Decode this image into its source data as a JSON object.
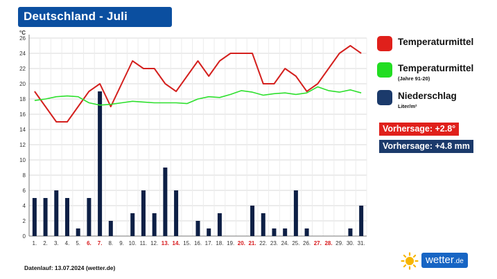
{
  "header": {
    "title": "Deutschland - Juli"
  },
  "legend": [
    {
      "label": "Temperaturmittel",
      "sub": "",
      "color": "#e0201b"
    },
    {
      "label": "Temperaturmittel",
      "sub": "(Jahre 91-20)",
      "color": "#22dd22"
    },
    {
      "label": "Niederschlag",
      "sub": "Liter/m²",
      "color": "#1b3a6b"
    }
  ],
  "forecasts": [
    {
      "text": "Vorhersage: +2.8°",
      "color": "#e0201b"
    },
    {
      "text": "Vorhersage: +4.8 mm",
      "color": "#1b3a6b"
    }
  ],
  "footer": {
    "note": "Datenlauf: 13.07.2024 (wetter.de)"
  },
  "brand": {
    "name": "wetter",
    "suffix": ".de"
  },
  "chart_data": {
    "type": "bar",
    "yunit": "°C",
    "ylim": [
      0,
      26
    ],
    "yticks": [
      0,
      2,
      4,
      6,
      8,
      10,
      12,
      14,
      16,
      18,
      20,
      22,
      24,
      26
    ],
    "grid": true,
    "categories": [
      "1.",
      "2.",
      "3.",
      "4.",
      "5.",
      "6.",
      "7.",
      "8.",
      "9.",
      "10.",
      "11.",
      "12.",
      "13.",
      "14.",
      "15.",
      "16.",
      "17.",
      "18.",
      "19.",
      "20.",
      "21.",
      "22.",
      "23.",
      "24.",
      "25.",
      "26.",
      "27.",
      "28.",
      "29.",
      "30.",
      "31."
    ],
    "weekend_days": [
      6,
      7,
      13,
      14,
      20,
      21,
      27,
      28
    ],
    "weekend_color": "#d7191c",
    "series": [
      {
        "name": "Niederschlag",
        "kind": "bar",
        "color": "#0d1f45",
        "values": [
          5,
          5,
          6,
          5,
          1,
          5,
          19,
          2,
          0,
          3,
          6,
          3,
          9,
          6,
          0,
          2,
          1,
          3,
          0,
          0,
          4,
          3,
          1,
          1,
          6,
          1,
          0,
          0,
          0,
          1,
          4
        ]
      },
      {
        "name": "Temperaturmittel",
        "kind": "line",
        "color": "#d4201e",
        "values": [
          19,
          17,
          15,
          15,
          17,
          19,
          20,
          17,
          20,
          23,
          22,
          22,
          20,
          19,
          21,
          23,
          21,
          23,
          24,
          24,
          24,
          20,
          20,
          22,
          21,
          19,
          20,
          22,
          24,
          25,
          24
        ]
      },
      {
        "name": "Temperaturmittel (Jahre 91-20)",
        "kind": "line",
        "color": "#2de02d",
        "values": [
          17.8,
          18,
          18.3,
          18.4,
          18.3,
          17.5,
          17.2,
          17.3,
          17.5,
          17.7,
          17.6,
          17.5,
          17.5,
          17.5,
          17.4,
          18,
          18.3,
          18.2,
          18.6,
          19.1,
          18.9,
          18.5,
          18.7,
          18.8,
          18.6,
          18.8,
          19.6,
          19.1,
          18.9,
          19.2,
          18.8
        ]
      }
    ]
  }
}
